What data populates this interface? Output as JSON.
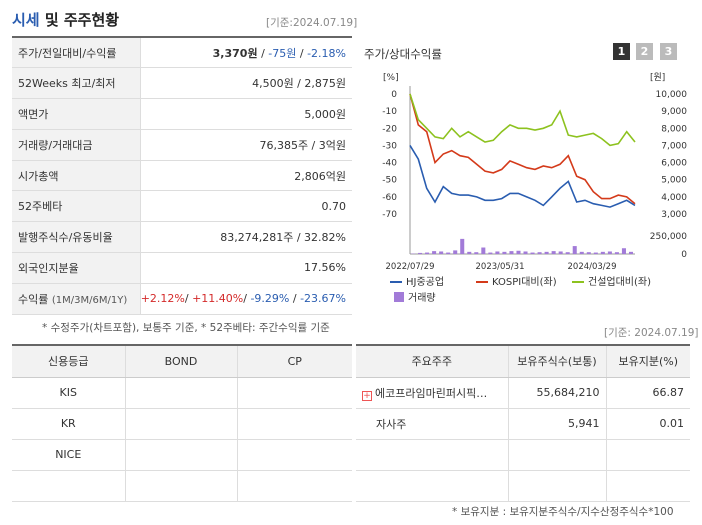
{
  "header": {
    "title_part1": "시세",
    "title_part2": "및 주주현황",
    "date": "[기준:2024.07.19]"
  },
  "price_rows": [
    {
      "label": "주가/전일대비/수익률",
      "price": "3,370원",
      "sep1": " / ",
      "change": "-75원",
      "sep2": " / ",
      "rate": "-2.18%"
    },
    {
      "label": "52Weeks 최고/최저",
      "value": "4,500원 / 2,875원"
    },
    {
      "label": "액면가",
      "value": "5,000원"
    },
    {
      "label": "거래량/거래대금",
      "value": "76,385주 / 3억원"
    },
    {
      "label": "시가총액",
      "value": "2,806억원"
    },
    {
      "label": "52주베타",
      "value": "0.70"
    },
    {
      "label": "발행주식수/유동비율",
      "value": "83,274,281주 / 32.82%"
    },
    {
      "label": "외국인지분율",
      "value": "17.56%"
    },
    {
      "label": "수익률",
      "label_sub": "(1M/3M/6M/1Y)",
      "r1": "+2.12%",
      "r2": "+11.40%",
      "r3": "-9.29%",
      "r4": "-23.67%"
    }
  ],
  "notes": {
    "price_note": "* 수정주가(차트포함), 보통주 기준, * 52주베타: 주간수익률 기준",
    "date2": "[기준: 2024.07.19]",
    "holder_note": "* 보유지분 : 보유지분주식수/지수산정주식수*100"
  },
  "chart": {
    "title": "주가/상대수익률",
    "tabs": [
      "1",
      "2",
      "3"
    ],
    "colors": {
      "hj": "#2a5db0",
      "kospi": "#d43a1a",
      "construction": "#8dc21f",
      "volume": "#a27bd8"
    }
  },
  "chart_data": {
    "type": "line",
    "left_axis_label": "[%]",
    "right_axis_label": "[원]",
    "left_ticks": [
      "0",
      "-10",
      "-20",
      "-30",
      "-40",
      "-50",
      "-60",
      "-70"
    ],
    "right_ticks": [
      "10,000",
      "9,000",
      "8,000",
      "7,000",
      "6,000",
      "5,000",
      "4,000",
      "3,000"
    ],
    "volume_ticks": [
      "250,000",
      "0"
    ],
    "x_ticks": [
      "2022/07/29",
      "2023/05/31",
      "2024/03/29"
    ],
    "series": [
      {
        "name": "HJ중공업",
        "values": [
          -30,
          -38,
          -55,
          -63,
          -54,
          -58,
          -59,
          -59,
          -60,
          -62,
          -62,
          -61,
          -58,
          -58,
          -60,
          -62,
          -65,
          -60,
          -55,
          -51,
          -63,
          -62,
          -64,
          -65,
          -66,
          -64,
          -62,
          -65
        ]
      },
      {
        "name": "KOSPI대비(좌)",
        "values": [
          0,
          -18,
          -22,
          -40,
          -35,
          -33,
          -36,
          -37,
          -41,
          -45,
          -46,
          -44,
          -39,
          -41,
          -43,
          -44,
          -42,
          -43,
          -41,
          -36,
          -48,
          -50,
          -57,
          -61,
          -61,
          -59,
          -60,
          -64
        ]
      },
      {
        "name": "건설업대비(좌)",
        "values": [
          0,
          -15,
          -20,
          -25,
          -26,
          -20,
          -25,
          -22,
          -25,
          -28,
          -27,
          -22,
          -18,
          -20,
          -20,
          -21,
          -20,
          -18,
          -10,
          -24,
          -25,
          -24,
          -23,
          -26,
          -30,
          -29,
          -22,
          -28
        ]
      }
    ],
    "volume_series": {
      "name": "거래량",
      "values": [
        5000,
        15000,
        20000,
        40000,
        35000,
        20000,
        50000,
        210000,
        30000,
        25000,
        90000,
        20000,
        35000,
        30000,
        40000,
        45000,
        35000,
        20000,
        25000,
        30000,
        40000,
        35000,
        25000,
        110000,
        30000,
        25000,
        20000,
        30000,
        35000,
        25000,
        80000,
        30000
      ]
    }
  },
  "credit": {
    "headers": [
      "신용등급",
      "BOND",
      "CP"
    ],
    "rows": [
      [
        "KIS",
        "",
        ""
      ],
      [
        "KR",
        "",
        ""
      ],
      [
        "NICE",
        "",
        ""
      ],
      [
        "",
        "",
        ""
      ]
    ]
  },
  "holders": {
    "headers": [
      "주요주주",
      "보유주식수(보통)",
      "보유지분(%)"
    ],
    "rows": [
      {
        "name": "에코프라임마린퍼시픽…",
        "shares": "55,684,210",
        "ratio": "66.87"
      },
      {
        "name": "자사주",
        "shares": "5,941",
        "ratio": "0.01"
      },
      {
        "name": "",
        "shares": "",
        "ratio": ""
      },
      {
        "name": "",
        "shares": "",
        "ratio": ""
      }
    ]
  }
}
